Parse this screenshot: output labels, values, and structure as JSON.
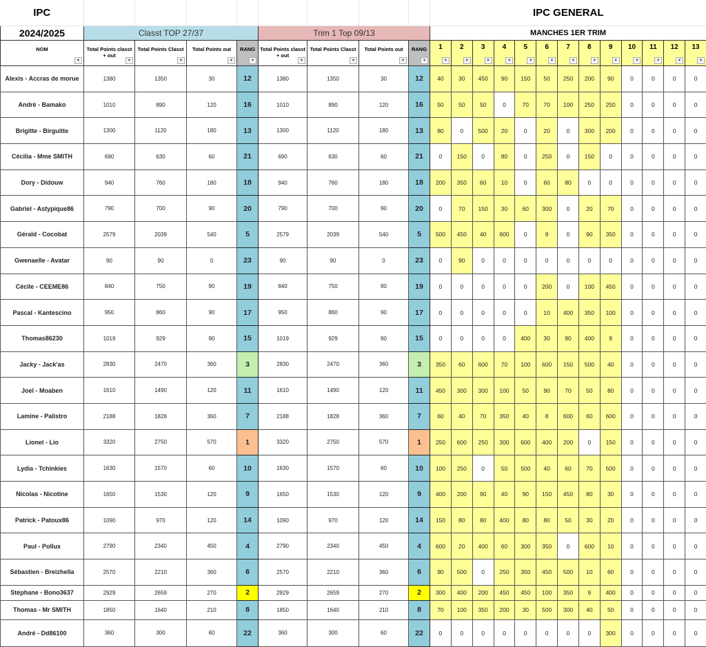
{
  "title_left": "IPC",
  "title_right": "IPC GENERAL",
  "season": "2024/2025",
  "groups": {
    "classt": "Classt TOP 27/37",
    "trim": "Trim 1 Top 09/13",
    "manches": "MANCHES 1ER TRIM"
  },
  "headers": {
    "nom": "NOM",
    "classt": [
      "Total Points classt + out",
      "Total Points Classt",
      "Total Points out",
      "RANG"
    ],
    "trim": [
      "Total Points classt + out",
      "Total Points Classt",
      "Total Points out",
      "RANG"
    ],
    "manches": [
      "1",
      "2",
      "3",
      "4",
      "5",
      "6",
      "7",
      "8",
      "9",
      "10",
      "11",
      "12",
      "13"
    ]
  },
  "colors": {
    "classt_header": "#b7dde8",
    "trim_header": "#e6b8b7",
    "manche_header": "#ffff99",
    "manche_filled": "#ffff99",
    "rang_header": "#bfbfbf",
    "rang": "#92cddc",
    "rank1": "#fac090",
    "rank2": "#ffff00",
    "rank3": "#c4efb0"
  },
  "rows": [
    {
      "name": "Alexis - Accras de morue",
      "classt": [
        1380,
        1350,
        30,
        12
      ],
      "trim": [
        1380,
        1350,
        30,
        12
      ],
      "manches": [
        40,
        30,
        450,
        90,
        150,
        50,
        250,
        200,
        90,
        0,
        0,
        0,
        0
      ]
    },
    {
      "name": "André - Bamako",
      "classt": [
        1010,
        890,
        120,
        16
      ],
      "trim": [
        1010,
        890,
        120,
        16
      ],
      "manches": [
        50,
        50,
        50,
        0,
        70,
        70,
        100,
        250,
        250,
        0,
        0,
        0,
        0
      ]
    },
    {
      "name": "Brigitte - Birguitte",
      "classt": [
        1300,
        1120,
        180,
        13
      ],
      "trim": [
        1300,
        1120,
        180,
        13
      ],
      "manches": [
        80,
        0,
        500,
        20,
        0,
        20,
        0,
        300,
        200,
        0,
        0,
        0,
        0
      ]
    },
    {
      "name": "Cécilia - Mme SMITH",
      "classt": [
        690,
        630,
        60,
        21
      ],
      "trim": [
        690,
        630,
        60,
        21
      ],
      "manches": [
        0,
        150,
        0,
        80,
        0,
        250,
        0,
        150,
        0,
        0,
        0,
        0,
        0
      ]
    },
    {
      "name": "Dory - Didouw",
      "classt": [
        940,
        760,
        180,
        18
      ],
      "trim": [
        940,
        760,
        180,
        18
      ],
      "manches": [
        200,
        350,
        60,
        10,
        0,
        60,
        80,
        0,
        0,
        0,
        0,
        0,
        0
      ]
    },
    {
      "name": "Gabriel - Astypique86",
      "classt": [
        790,
        700,
        90,
        20
      ],
      "trim": [
        790,
        700,
        90,
        20
      ],
      "manches": [
        0,
        70,
        150,
        30,
        60,
        300,
        0,
        20,
        70,
        0,
        0,
        0,
        0
      ]
    },
    {
      "name": "Gérald - Cocobat",
      "classt": [
        2579,
        2039,
        540,
        5
      ],
      "trim": [
        2579,
        2039,
        540,
        5
      ],
      "manches": [
        500,
        450,
        40,
        600,
        0,
        9,
        0,
        90,
        350,
        0,
        0,
        0,
        0
      ]
    },
    {
      "name": "Gwenaelle - Avatar",
      "classt": [
        90,
        90,
        0,
        23
      ],
      "trim": [
        90,
        90,
        0,
        23
      ],
      "manches": [
        0,
        90,
        0,
        0,
        0,
        0,
        0,
        0,
        0,
        0,
        0,
        0,
        0
      ]
    },
    {
      "name": "Cécile - CEEME86",
      "classt": [
        840,
        750,
        90,
        19
      ],
      "trim": [
        840,
        750,
        90,
        19
      ],
      "manches": [
        0,
        0,
        0,
        0,
        0,
        200,
        0,
        100,
        450,
        0,
        0,
        0,
        0
      ]
    },
    {
      "name": "Pascal - Kantescino",
      "classt": [
        950,
        860,
        90,
        17
      ],
      "trim": [
        950,
        860,
        90,
        17
      ],
      "manches": [
        0,
        0,
        0,
        0,
        0,
        10,
        400,
        350,
        100,
        0,
        0,
        0,
        0
      ]
    },
    {
      "name": "Thomas86230",
      "classt": [
        1019,
        929,
        90,
        15
      ],
      "trim": [
        1019,
        929,
        90,
        15
      ],
      "manches": [
        0,
        0,
        0,
        0,
        400,
        30,
        90,
        400,
        9,
        0,
        0,
        0,
        0
      ]
    },
    {
      "name": "Jacky - Jack'as",
      "classt": [
        2830,
        2470,
        360,
        3
      ],
      "trim": [
        2830,
        2470,
        360,
        3
      ],
      "manches": [
        350,
        60,
        600,
        70,
        100,
        600,
        150,
        500,
        40,
        0,
        0,
        0,
        0
      ]
    },
    {
      "name": "Joel - Moaben",
      "classt": [
        1610,
        1490,
        120,
        11
      ],
      "trim": [
        1610,
        1490,
        120,
        11
      ],
      "manches": [
        450,
        300,
        300,
        100,
        50,
        90,
        70,
        50,
        80,
        0,
        0,
        0,
        0
      ]
    },
    {
      "name": "Lamine - Palistro",
      "classt": [
        2188,
        1828,
        360,
        7
      ],
      "trim": [
        2188,
        1828,
        360,
        7
      ],
      "manches": [
        60,
        40,
        70,
        350,
        40,
        8,
        600,
        60,
        600,
        0,
        0,
        0,
        0
      ]
    },
    {
      "name": "Lionel - Lio",
      "classt": [
        3320,
        2750,
        570,
        1
      ],
      "trim": [
        3320,
        2750,
        570,
        1
      ],
      "manches": [
        250,
        600,
        250,
        300,
        600,
        400,
        200,
        0,
        150,
        0,
        0,
        0,
        0
      ]
    },
    {
      "name": "Lydia - Tchinkies",
      "classt": [
        1630,
        1570,
        60,
        10
      ],
      "trim": [
        1630,
        1570,
        60,
        10
      ],
      "manches": [
        100,
        250,
        0,
        50,
        500,
        40,
        60,
        70,
        500,
        0,
        0,
        0,
        0
      ]
    },
    {
      "name": "Nicolas - Nicotine",
      "classt": [
        1650,
        1530,
        120,
        9
      ],
      "trim": [
        1650,
        1530,
        120,
        9
      ],
      "manches": [
        400,
        200,
        90,
        40,
        90,
        150,
        450,
        80,
        30,
        0,
        0,
        0,
        0
      ]
    },
    {
      "name": "Patrick - Patoux86",
      "classt": [
        1090,
        970,
        120,
        14
      ],
      "trim": [
        1090,
        970,
        120,
        14
      ],
      "manches": [
        150,
        80,
        80,
        400,
        80,
        80,
        50,
        30,
        20,
        0,
        0,
        0,
        0
      ]
    },
    {
      "name": "Paul - Pollux",
      "classt": [
        2790,
        2340,
        450,
        4
      ],
      "trim": [
        2790,
        2340,
        450,
        4
      ],
      "manches": [
        600,
        20,
        400,
        60,
        300,
        350,
        0,
        600,
        10,
        0,
        0,
        0,
        0
      ]
    },
    {
      "name": "Sébastien - Breizhella",
      "classt": [
        2570,
        2210,
        360,
        6
      ],
      "trim": [
        2570,
        2210,
        360,
        6
      ],
      "manches": [
        90,
        500,
        0,
        250,
        350,
        450,
        500,
        10,
        60,
        0,
        0,
        0,
        0
      ]
    },
    {
      "name": "Stéphane - Bono3637",
      "classt": [
        2929,
        2659,
        270,
        2
      ],
      "trim": [
        2929,
        2659,
        270,
        2
      ],
      "manches": [
        300,
        400,
        200,
        450,
        450,
        100,
        350,
        9,
        400,
        0,
        0,
        0,
        0
      ]
    },
    {
      "name": "Thomas - Mr SMITH",
      "classt": [
        1850,
        1640,
        210,
        8
      ],
      "trim": [
        1850,
        1640,
        210,
        8
      ],
      "manches": [
        70,
        100,
        350,
        200,
        30,
        500,
        300,
        40,
        50,
        0,
        0,
        0,
        0
      ]
    },
    {
      "name": "André - Dd86100",
      "classt": [
        360,
        300,
        60,
        22
      ],
      "trim": [
        360,
        300,
        60,
        22
      ],
      "manches": [
        0,
        0,
        0,
        0,
        0,
        0,
        0,
        0,
        300,
        0,
        0,
        0,
        0
      ]
    }
  ]
}
